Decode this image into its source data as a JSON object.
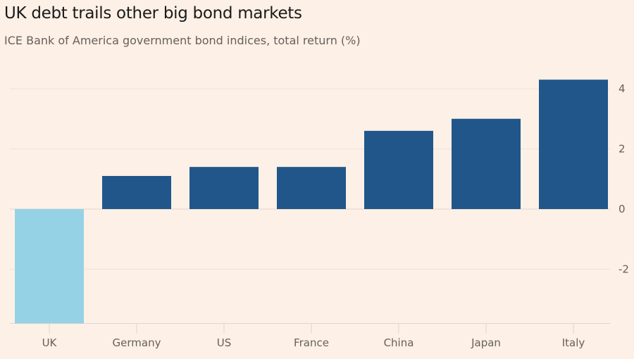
{
  "chart_data": {
    "type": "bar",
    "title": "UK debt trails other big bond markets",
    "subtitle": "ICE Bank of America government bond indices, total return (%)",
    "categories": [
      "UK",
      "Germany",
      "US",
      "France",
      "China",
      "Japan",
      "Italy"
    ],
    "values": [
      -3.8,
      1.1,
      1.4,
      1.4,
      2.6,
      3.0,
      4.3
    ],
    "colors": [
      "#96d2e6",
      "#21568a",
      "#21568a",
      "#21568a",
      "#21568a",
      "#21568a",
      "#21568a"
    ],
    "yticks": [
      4,
      2,
      0,
      -2
    ],
    "ylim": [
      -3.8,
      4.3
    ],
    "xlabel": "",
    "ylabel": "",
    "grid": true,
    "yaxis_position": "right"
  }
}
